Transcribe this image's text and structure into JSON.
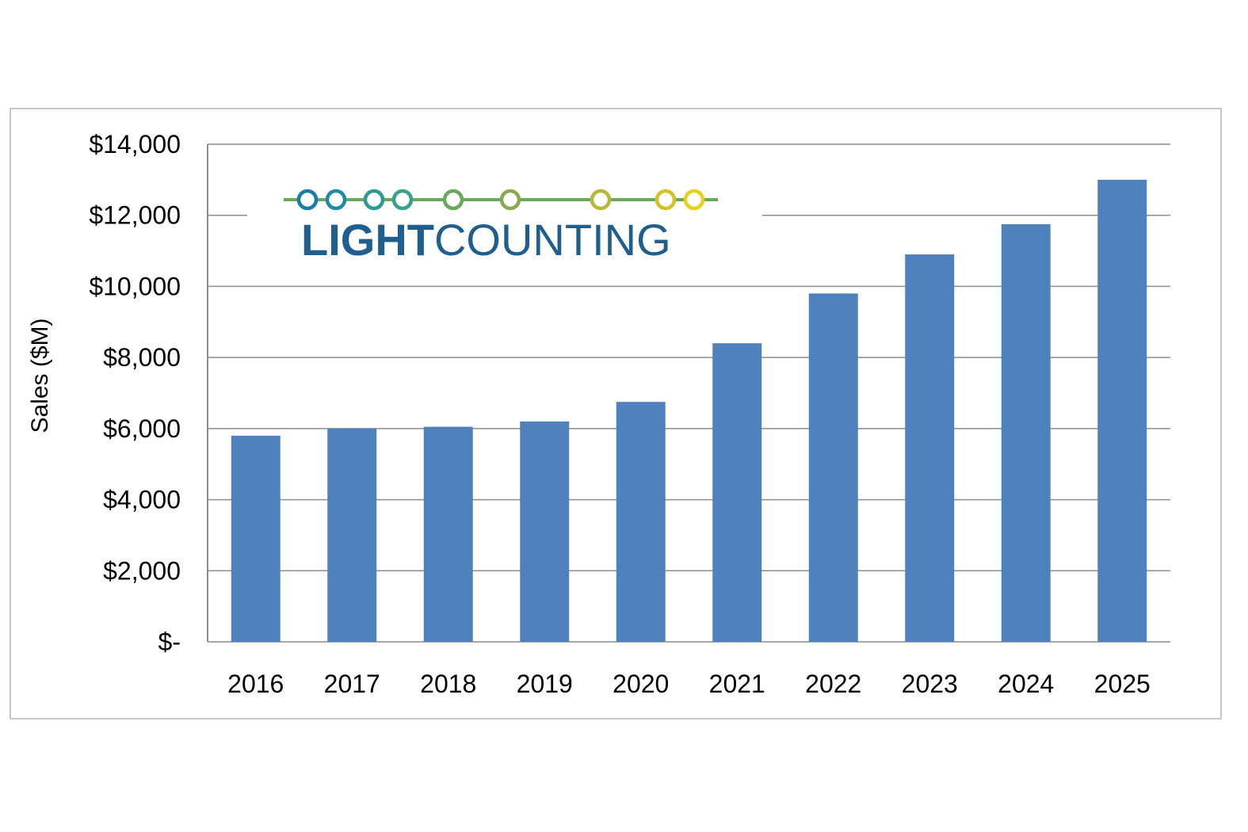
{
  "chart_data": {
    "type": "bar",
    "categories": [
      "2016",
      "2017",
      "2018",
      "2019",
      "2020",
      "2021",
      "2022",
      "2023",
      "2024",
      "2025"
    ],
    "values": [
      5800,
      6000,
      6050,
      6200,
      6750,
      8400,
      9800,
      10900,
      11750,
      13000
    ],
    "title": "",
    "xlabel": "",
    "ylabel": "Sales ($M)",
    "ylim": [
      0,
      14000
    ],
    "yticks": [
      0,
      2000,
      4000,
      6000,
      8000,
      10000,
      12000,
      14000
    ],
    "ytick_labels": [
      "$-",
      "$2,000",
      "$4,000",
      "$6,000",
      "$8,000",
      "$10,000",
      "$12,000",
      "$14,000"
    ],
    "bar_color": "#4f81bd",
    "grid": true,
    "legend": "none"
  },
  "logo": {
    "text_bold": "LIGHT",
    "text_light": "COUNTING",
    "text_color": "#1f5f8f",
    "dot_colors": [
      "#1a7aa8",
      "#1f8aa8",
      "#2e9a96",
      "#3aa08a",
      "#6aa85e",
      "#86aa50",
      "#b6b83a",
      "#d2c22a",
      "#e6d21a"
    ]
  }
}
